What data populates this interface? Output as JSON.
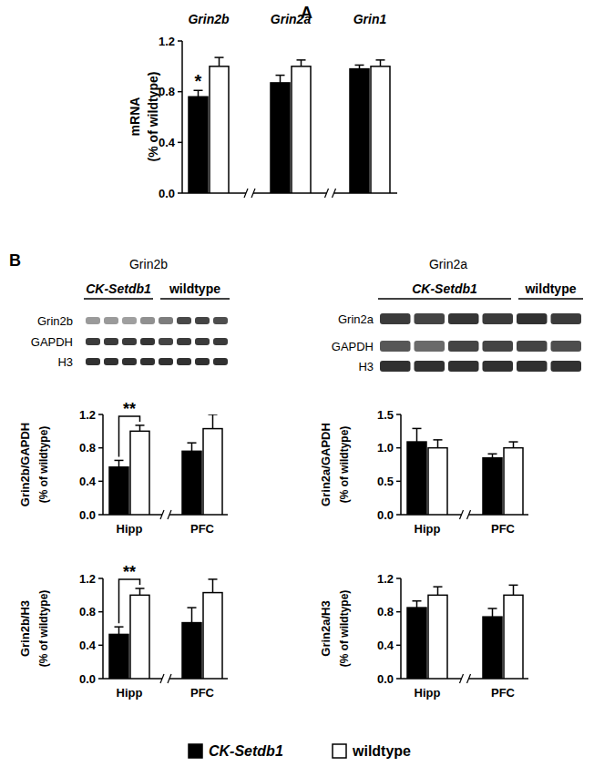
{
  "chart_data": [
    {
      "panel": "A",
      "type": "bar",
      "y_label": [
        "mRNA",
        "(% of wildtype)"
      ],
      "categories": [
        "Grin2b",
        "Grin2a",
        "Grin1"
      ],
      "series": [
        {
          "name": "CK-Setdb1",
          "color": "#000000",
          "values": [
            0.76,
            0.87,
            0.98
          ],
          "errors": [
            0.05,
            0.06,
            0.03
          ]
        },
        {
          "name": "wildtype",
          "color": "#ffffff",
          "values": [
            1.0,
            1.0,
            1.0
          ],
          "errors": [
            0.07,
            0.05,
            0.05
          ]
        }
      ],
      "ylim": [
        0,
        1.2
      ],
      "yticks": [
        {
          "value": 0,
          "label": "0.0"
        },
        0.4,
        0.8,
        1.2
      ],
      "annotations": [
        {
          "text": "*",
          "category": "Grin2b",
          "series": "CK-Setdb1"
        }
      ],
      "legend": "bottom"
    },
    {
      "type": "bar",
      "y_label": [
        "Grin2b/GAPDH",
        "(% of wildtype)"
      ],
      "categories": [
        "Hipp",
        "PFC"
      ],
      "series": [
        {
          "name": "CK-Setdb1",
          "color": "#000000",
          "values": [
            0.57,
            0.76
          ],
          "errors": [
            0.08,
            0.1
          ]
        },
        {
          "name": "wildtype",
          "color": "#ffffff",
          "values": [
            1.0,
            1.03
          ],
          "errors": [
            0.07,
            0.17
          ]
        }
      ],
      "ylim": [
        0,
        1.2
      ],
      "yticks": [
        {
          "value": 0,
          "label": "0.0"
        },
        0.4,
        0.8,
        1.2
      ],
      "annotations": [
        {
          "text": "**",
          "category": "Hipp"
        }
      ]
    },
    {
      "type": "bar",
      "y_label": [
        "Grin2a/GAPDH",
        "(% of wildtype)"
      ],
      "categories": [
        "Hipp",
        "PFC"
      ],
      "series": [
        {
          "name": "CK-Setdb1",
          "color": "#000000",
          "values": [
            1.09,
            0.85
          ],
          "errors": [
            0.2,
            0.06
          ]
        },
        {
          "name": "wildtype",
          "color": "#ffffff",
          "values": [
            1.0,
            1.0
          ],
          "errors": [
            0.12,
            0.09
          ]
        }
      ],
      "ylim": [
        0,
        1.5
      ],
      "yticks": [
        {
          "value": 0,
          "label": "0.0"
        },
        0.5,
        {
          "value": 1,
          "label": "1.0"
        },
        1.5
      ]
    },
    {
      "type": "bar",
      "y_label": [
        "Grin2b/H3",
        "(% of wildtype)"
      ],
      "categories": [
        "Hipp",
        "PFC"
      ],
      "series": [
        {
          "name": "CK-Setdb1",
          "color": "#000000",
          "values": [
            0.53,
            0.67
          ],
          "errors": [
            0.09,
            0.18
          ]
        },
        {
          "name": "wildtype",
          "color": "#ffffff",
          "values": [
            1.0,
            1.03
          ],
          "errors": [
            0.08,
            0.16
          ]
        }
      ],
      "ylim": [
        0,
        1.2
      ],
      "yticks": [
        {
          "value": 0,
          "label": "0.0"
        },
        0.4,
        0.8,
        1.2
      ],
      "annotations": [
        {
          "text": "**",
          "category": "Hipp"
        }
      ]
    },
    {
      "type": "bar",
      "y_label": [
        "Grin2a/H3",
        "(% of wildtype)"
      ],
      "categories": [
        "Hipp",
        "PFC"
      ],
      "series": [
        {
          "name": "CK-Setdb1",
          "color": "#000000",
          "values": [
            0.85,
            0.74
          ],
          "errors": [
            0.08,
            0.1
          ]
        },
        {
          "name": "wildtype",
          "color": "#ffffff",
          "values": [
            1.0,
            1.0
          ],
          "errors": [
            0.1,
            0.12
          ]
        }
      ],
      "ylim": [
        0,
        1.2
      ],
      "yticks": [
        {
          "value": 0,
          "label": "0.0"
        },
        0.4,
        0.8,
        1.2
      ]
    }
  ],
  "blots": [
    {
      "panel": "B",
      "title": "Grin2b",
      "groups": [
        "CK-Setdb1",
        "wildtype"
      ],
      "rows": [
        "Grin2b",
        "GAPDH",
        "H3"
      ]
    },
    {
      "title": "Grin2a",
      "groups": [
        "CK-Setdb1",
        "wildtype"
      ],
      "rows": [
        "Grin2a",
        "GAPDH",
        "H3"
      ]
    }
  ]
}
